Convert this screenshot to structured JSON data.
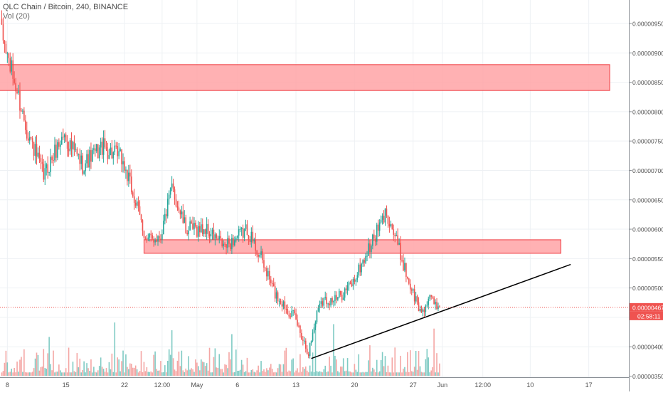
{
  "header": {
    "title": "QLC Chain / Bitcoin, 240, BINANCE",
    "volume_label": "Vol (20)"
  },
  "colors": {
    "up": "#26a69a",
    "down": "#ef5350",
    "vol_up": "#80cbc4",
    "vol_down": "#f4a6a4",
    "zone_fill": "#ffa3a6",
    "zone_stroke": "#ef3b40",
    "trendline": "#000000",
    "grid": "#eef1f4",
    "price_line": "#ef5350"
  },
  "chart_data": {
    "type": "candlestick",
    "y_axis": {
      "min": 3.3e-06,
      "max": 9.9e-06,
      "ticks": [
        "0.00000350",
        "0.00000400",
        "0.00000450",
        "0.00000500",
        "0.00000550",
        "0.00000600",
        "0.00000650",
        "0.00000700",
        "0.00000750",
        "0.00000800",
        "0.00000850",
        "0.00000900",
        "0.00000950"
      ]
    },
    "x_axis": {
      "ticks": [
        {
          "label": "8",
          "bar": 4
        },
        {
          "label": "15",
          "bar": 46
        },
        {
          "label": "22",
          "bar": 88
        },
        {
          "label": "12:00",
          "bar": 115
        },
        {
          "label": "May",
          "bar": 140
        },
        {
          "label": "6",
          "bar": 169
        },
        {
          "label": "13",
          "bar": 211
        },
        {
          "label": "20",
          "bar": 253
        },
        {
          "label": "27",
          "bar": 295
        },
        {
          "label": "Jun",
          "bar": 316
        },
        {
          "label": "12:00",
          "bar": 345
        },
        {
          "label": "10",
          "bar": 379
        },
        {
          "label": "17",
          "bar": 421
        }
      ]
    },
    "current_price": {
      "value": 4.67e-06,
      "label": "0.00000467",
      "countdown": "02:58:11"
    },
    "bar_count": 315,
    "last_bar_index": 314,
    "total_slots": 441,
    "anchors": [
      {
        "bar": 0,
        "price": 9.3e-06
      },
      {
        "bar": 8,
        "price": 8.6e-06
      },
      {
        "bar": 18,
        "price": 7.7e-06
      },
      {
        "bar": 30,
        "price": 6.9e-06
      },
      {
        "bar": 44,
        "price": 7.6e-06
      },
      {
        "bar": 58,
        "price": 7.1e-06
      },
      {
        "bar": 72,
        "price": 7.4e-06
      },
      {
        "bar": 86,
        "price": 7.2e-06
      },
      {
        "bar": 94,
        "price": 6.6e-06
      },
      {
        "bar": 104,
        "price": 5.8e-06
      },
      {
        "bar": 114,
        "price": 5.9e-06
      },
      {
        "bar": 122,
        "price": 6.7e-06
      },
      {
        "bar": 132,
        "price": 6e-06
      },
      {
        "bar": 146,
        "price": 6e-06
      },
      {
        "bar": 160,
        "price": 5.7e-06
      },
      {
        "bar": 176,
        "price": 6e-06
      },
      {
        "bar": 186,
        "price": 5.5e-06
      },
      {
        "bar": 196,
        "price": 4.9e-06
      },
      {
        "bar": 210,
        "price": 4.5e-06
      },
      {
        "bar": 220,
        "price": 3.9e-06
      },
      {
        "bar": 228,
        "price": 4.8e-06
      },
      {
        "bar": 240,
        "price": 4.8e-06
      },
      {
        "bar": 252,
        "price": 5.1e-06
      },
      {
        "bar": 266,
        "price": 5.8e-06
      },
      {
        "bar": 276,
        "price": 6.3e-06
      },
      {
        "bar": 283,
        "price": 5.8e-06
      },
      {
        "bar": 292,
        "price": 5.1e-06
      },
      {
        "bar": 300,
        "price": 4.6e-06
      },
      {
        "bar": 308,
        "price": 4.8e-06
      },
      {
        "bar": 314,
        "price": 4.67e-06
      }
    ],
    "zones": [
      {
        "start_bar": -3,
        "end_bar": 436,
        "top": 8.8e-06,
        "bottom": 8.36e-06
      },
      {
        "start_bar": 102,
        "end_bar": 401,
        "top": 5.82e-06,
        "bottom": 5.59e-06
      }
    ],
    "trendline": {
      "start_bar": 222,
      "start_price": 3.8e-06,
      "end_bar": 408,
      "end_price": 5.4e-06
    },
    "volume": {
      "max_value": 100,
      "spikes": [
        {
          "bar": 34,
          "value": 70
        },
        {
          "bar": 81,
          "value": 96
        },
        {
          "bar": 122,
          "value": 82
        },
        {
          "bar": 165,
          "value": 75
        },
        {
          "bar": 225,
          "value": 100
        },
        {
          "bar": 238,
          "value": 93
        },
        {
          "bar": 264,
          "value": 55
        },
        {
          "bar": 310,
          "value": 85
        }
      ]
    }
  }
}
